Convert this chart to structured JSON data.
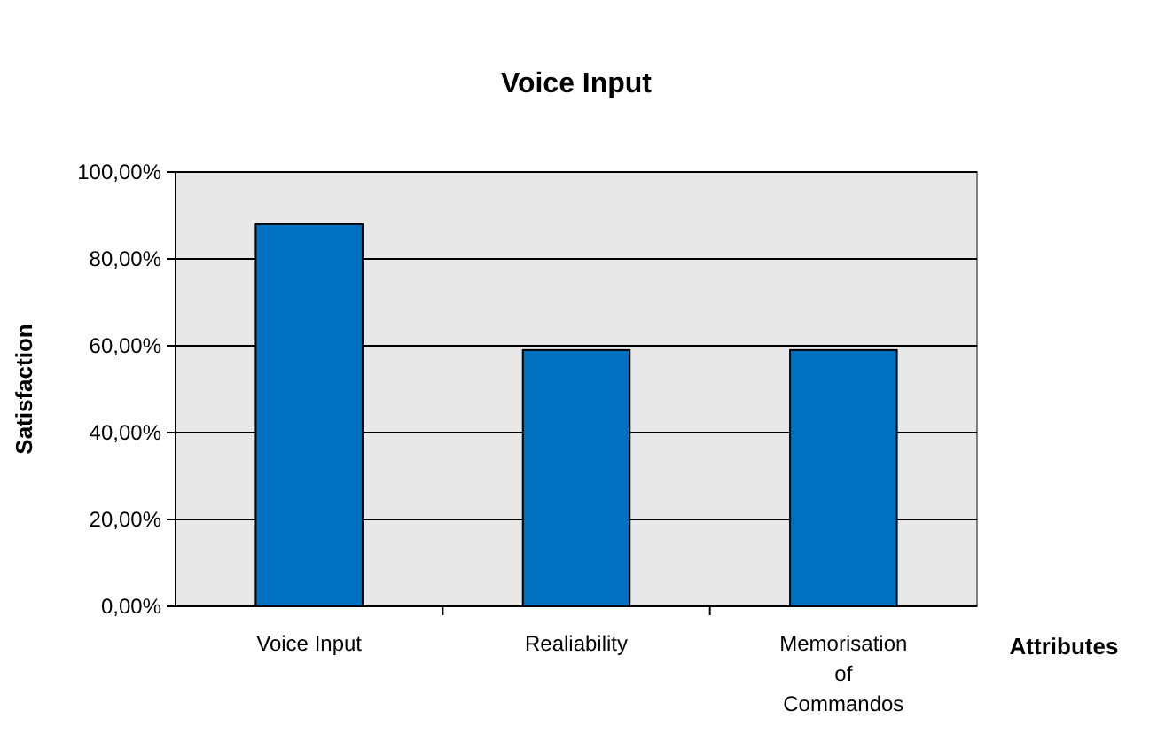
{
  "chart_data": {
    "type": "bar",
    "title": "Voice Input",
    "xlabel": "Attributes",
    "ylabel": "Satisfaction",
    "categories": [
      "Voice Input",
      "Realiability",
      "Memorisation of Commandos"
    ],
    "values": [
      88,
      59,
      59
    ],
    "color": "#0070c0",
    "ylim": [
      0,
      100
    ],
    "yticks": [
      {
        "value": 0,
        "label": "0,00%"
      },
      {
        "value": 20,
        "label": "20,00%"
      },
      {
        "value": 40,
        "label": "40,00%"
      },
      {
        "value": 60,
        "label": "60,00%"
      },
      {
        "value": 80,
        "label": "80,00%"
      },
      {
        "value": 100,
        "label": "100,00%"
      }
    ],
    "grid": "y"
  }
}
